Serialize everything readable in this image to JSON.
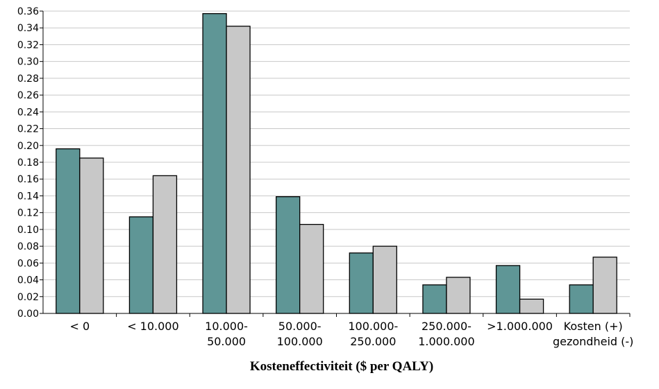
{
  "chart_data": {
    "type": "bar",
    "title": "",
    "xlabel": "Kosteneffectiviteit ($ per QALY)",
    "ylabel": "",
    "ylim": [
      0,
      0.36
    ],
    "ytick_step": 0.02,
    "grid": true,
    "legend": "none",
    "categories": [
      [
        "< 0"
      ],
      [
        "< 10.000"
      ],
      [
        "10.000-",
        "50.000"
      ],
      [
        "50.000-",
        "100.000"
      ],
      [
        "100.000-",
        "250.000"
      ],
      [
        "250.000-",
        "1.000.000"
      ],
      [
        ">1.000.000"
      ],
      [
        "Kosten (+)",
        "gezondheid (-)"
      ]
    ],
    "series": [
      {
        "color": "#5f9696",
        "values": [
          0.196,
          0.115,
          0.357,
          0.139,
          0.072,
          0.034,
          0.057,
          0.034
        ]
      },
      {
        "color": "#c8c8c8",
        "values": [
          0.185,
          0.164,
          0.342,
          0.106,
          0.08,
          0.043,
          0.017,
          0.067
        ]
      }
    ]
  }
}
